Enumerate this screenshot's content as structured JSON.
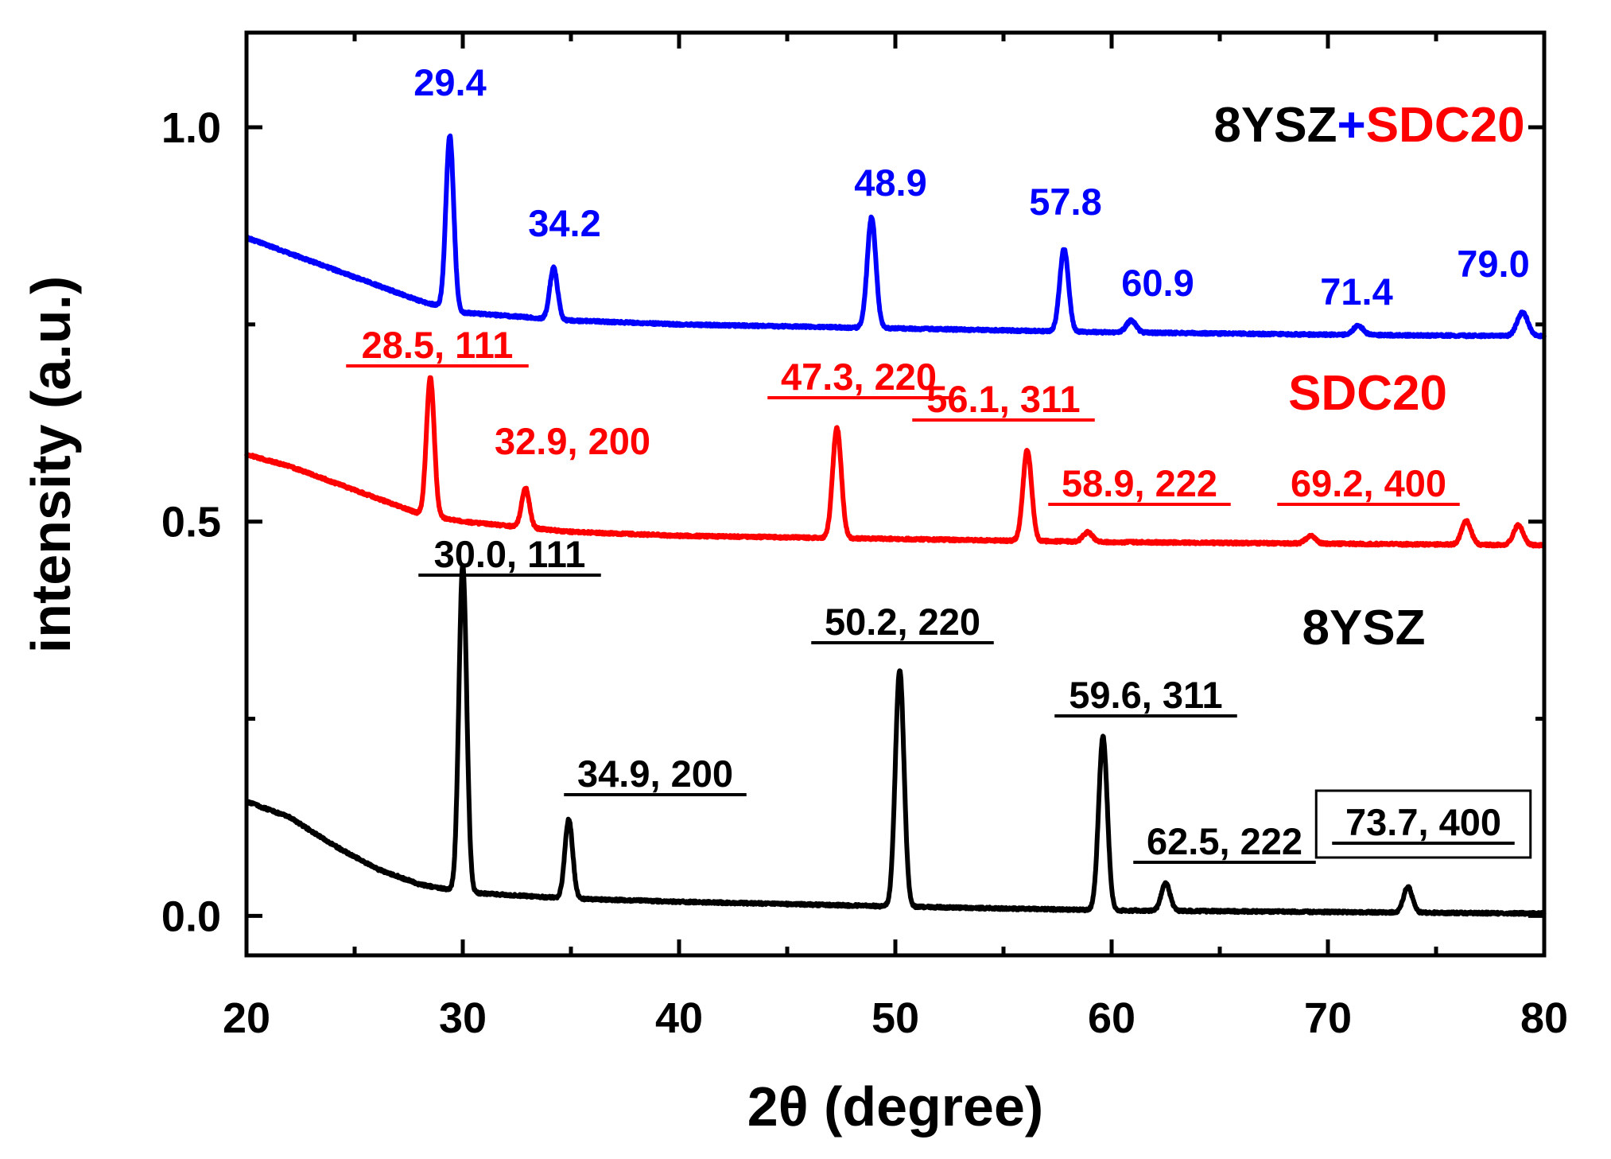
{
  "chart_data": {
    "type": "line",
    "title": "",
    "xlabel": "2θ (degree)",
    "ylabel": "intensity (a.u.)",
    "xlim": [
      20,
      80
    ],
    "ylim": [
      -0.05,
      1.12
    ],
    "xticks": [
      20,
      30,
      40,
      50,
      60,
      70,
      80
    ],
    "xtick_labels": [
      "20",
      "30",
      "40",
      "50",
      "60",
      "70",
      "80"
    ],
    "yticks": [
      0.0,
      0.5,
      1.0
    ],
    "ytick_labels": [
      "0.0",
      "0.5",
      "1.0"
    ],
    "y_minor_ticks": [
      0.25,
      0.75
    ],
    "grid": false,
    "series": [
      {
        "name": "8YSZ+SDC20",
        "color": "#0000ff",
        "label_parts": [
          {
            "text": "8YSZ",
            "color": "#000000"
          },
          {
            "text": "+",
            "color": "#0000ff"
          },
          {
            "text": "SDC20",
            "color": "#ff0000"
          }
        ],
        "baseline": [
          [
            20,
            0.86
          ],
          [
            22,
            0.84
          ],
          [
            24,
            0.82
          ],
          [
            26,
            0.8
          ],
          [
            28,
            0.78
          ],
          [
            30,
            0.765
          ],
          [
            35,
            0.755
          ],
          [
            40,
            0.75
          ],
          [
            50,
            0.745
          ],
          [
            60,
            0.74
          ],
          [
            70,
            0.737
          ],
          [
            80,
            0.735
          ]
        ],
        "peaks": [
          {
            "x": 29.4,
            "height": 0.22,
            "width": 0.18,
            "label": "29.4",
            "underline": false
          },
          {
            "x": 34.2,
            "height": 0.065,
            "width": 0.18,
            "label": "34.2",
            "underline": false
          },
          {
            "x": 48.9,
            "height": 0.14,
            "width": 0.2,
            "label": "48.9",
            "underline": false
          },
          {
            "x": 57.8,
            "height": 0.105,
            "width": 0.2,
            "label": "57.8",
            "underline": false
          },
          {
            "x": 60.9,
            "height": 0.015,
            "width": 0.22,
            "label": "60.9",
            "underline": false
          },
          {
            "x": 71.4,
            "height": 0.012,
            "width": 0.22,
            "label": "71.4",
            "underline": false
          },
          {
            "x": 79.0,
            "height": 0.03,
            "width": 0.25,
            "label": "79.0",
            "underline": false
          }
        ]
      },
      {
        "name": "SDC20",
        "color": "#ff0000",
        "label_parts": [
          {
            "text": "SDC20",
            "color": "#ff0000"
          }
        ],
        "baseline": [
          [
            20,
            0.585
          ],
          [
            22,
            0.57
          ],
          [
            24,
            0.55
          ],
          [
            26,
            0.53
          ],
          [
            28,
            0.51
          ],
          [
            30,
            0.5
          ],
          [
            35,
            0.487
          ],
          [
            40,
            0.482
          ],
          [
            50,
            0.478
          ],
          [
            60,
            0.474
          ],
          [
            70,
            0.472
          ],
          [
            80,
            0.47
          ]
        ],
        "peaks": [
          {
            "x": 28.5,
            "height": 0.175,
            "width": 0.18,
            "label": "28.5, 111",
            "underline": true
          },
          {
            "x": 32.9,
            "height": 0.05,
            "width": 0.18,
            "label": "32.9, 200",
            "underline": false
          },
          {
            "x": 47.3,
            "height": 0.14,
            "width": 0.2,
            "label": "47.3, 220",
            "underline": true
          },
          {
            "x": 56.1,
            "height": 0.115,
            "width": 0.2,
            "label": "56.1, 311",
            "underline": true
          },
          {
            "x": 58.9,
            "height": 0.012,
            "width": 0.22,
            "label": "58.9, 222",
            "underline": true
          },
          {
            "x": 69.2,
            "height": 0.01,
            "width": 0.22,
            "label": "69.2, 400",
            "underline": true
          },
          {
            "x": 76.4,
            "height": 0.03,
            "width": 0.22,
            "label": "",
            "underline": false
          },
          {
            "x": 78.8,
            "height": 0.025,
            "width": 0.22,
            "label": "",
            "underline": false
          }
        ]
      },
      {
        "name": "8YSZ",
        "color": "#000000",
        "label_parts": [
          {
            "text": "8YSZ",
            "color": "#000000"
          }
        ],
        "baseline": [
          [
            20,
            0.145
          ],
          [
            22,
            0.125
          ],
          [
            24,
            0.09
          ],
          [
            26,
            0.06
          ],
          [
            28,
            0.04
          ],
          [
            30,
            0.03
          ],
          [
            35,
            0.022
          ],
          [
            40,
            0.018
          ],
          [
            50,
            0.012
          ],
          [
            60,
            0.007
          ],
          [
            70,
            0.005
          ],
          [
            80,
            0.003
          ]
        ],
        "peaks": [
          {
            "x": 30.0,
            "height": 0.415,
            "width": 0.18,
            "label": "30.0, 111",
            "underline": true
          },
          {
            "x": 34.9,
            "height": 0.1,
            "width": 0.18,
            "label": "34.9, 200",
            "underline": true
          },
          {
            "x": 50.2,
            "height": 0.3,
            "width": 0.2,
            "label": "50.2, 220",
            "underline": true
          },
          {
            "x": 59.6,
            "height": 0.22,
            "width": 0.2,
            "label": "59.6, 311",
            "underline": true
          },
          {
            "x": 62.5,
            "height": 0.035,
            "width": 0.2,
            "label": "62.5, 222",
            "underline": true
          },
          {
            "x": 73.7,
            "height": 0.033,
            "width": 0.2,
            "label": "73.7, 400",
            "underline": true,
            "boxed": true
          }
        ]
      }
    ]
  }
}
